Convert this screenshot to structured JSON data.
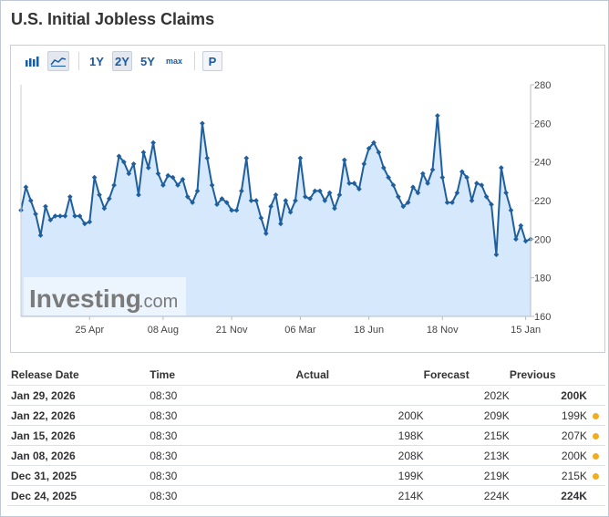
{
  "title": "U.S. Initial Jobless Claims",
  "toolbar": {
    "bar_icon": "bar-chart-icon",
    "area_icon": "area-chart-icon",
    "ranges": [
      "1Y",
      "2Y",
      "5Y",
      "max"
    ],
    "selected_range": "2Y",
    "p_label": "P"
  },
  "watermark": {
    "brand": "Investing",
    "suffix": ".com"
  },
  "colors": {
    "line": "#1f5f9e",
    "fill": "#d6e8fb",
    "green": "#23a000",
    "red": "#e01b1b",
    "dot": "#f2ad1c"
  },
  "chart_data": {
    "type": "area",
    "y_ticks": [
      160,
      180,
      200,
      220,
      240,
      260,
      280
    ],
    "ylim": [
      160,
      280
    ],
    "x_tick_labels": [
      "25 Apr",
      "08 Aug",
      "21 Nov",
      "06 Mar",
      "18 Jun",
      "18 Nov",
      "15 Jan"
    ],
    "x_tick_index": [
      14,
      29,
      43,
      57,
      71,
      86,
      103
    ],
    "grid": false,
    "values": [
      215,
      227,
      220,
      213,
      202,
      217,
      210,
      212,
      212,
      212,
      222,
      212,
      212,
      208,
      209,
      232,
      223,
      216,
      221,
      228,
      243,
      240,
      234,
      239,
      223,
      245,
      237,
      250,
      234,
      228,
      233,
      232,
      228,
      231,
      222,
      219,
      225,
      260,
      242,
      228,
      218,
      221,
      219,
      215,
      215,
      225,
      242,
      220,
      220,
      211,
      203,
      217,
      223,
      208,
      220,
      214,
      220,
      242,
      222,
      221,
      225,
      225,
      220,
      224,
      216,
      223,
      241,
      229,
      229,
      226,
      239,
      247,
      250,
      245,
      237,
      232,
      228,
      222,
      217,
      219,
      227,
      224,
      234,
      229,
      236,
      264,
      232,
      219,
      219,
      224,
      235,
      232,
      220,
      229,
      228,
      222,
      218,
      192,
      237,
      224,
      215,
      200,
      207,
      199,
      200
    ]
  },
  "table": {
    "headers": {
      "date": "Release Date",
      "time": "Time",
      "actual": "Actual",
      "forecast": "Forecast",
      "previous": "Previous"
    },
    "rows": [
      {
        "date": "Jan 29, 2026",
        "time": "08:30",
        "actual": "",
        "forecast": "202K",
        "previous": "200K",
        "actual_color": "none",
        "previous_color": "black",
        "revised": false
      },
      {
        "date": "Jan 22, 2026",
        "time": "08:30",
        "actual": "200K",
        "forecast": "209K",
        "previous": "199K",
        "actual_color": "green",
        "previous_color": "red",
        "revised": true
      },
      {
        "date": "Jan 15, 2026",
        "time": "08:30",
        "actual": "198K",
        "forecast": "215K",
        "previous": "207K",
        "actual_color": "green",
        "previous_color": "green",
        "revised": true
      },
      {
        "date": "Jan 08, 2026",
        "time": "08:30",
        "actual": "208K",
        "forecast": "213K",
        "previous": "200K",
        "actual_color": "green",
        "previous_color": "red",
        "revised": true
      },
      {
        "date": "Dec 31, 2025",
        "time": "08:30",
        "actual": "199K",
        "forecast": "219K",
        "previous": "215K",
        "actual_color": "green",
        "previous_color": "red",
        "revised": true
      },
      {
        "date": "Dec 24, 2025",
        "time": "08:30",
        "actual": "214K",
        "forecast": "224K",
        "previous": "224K",
        "actual_color": "green",
        "previous_color": "black",
        "revised": false
      }
    ]
  }
}
